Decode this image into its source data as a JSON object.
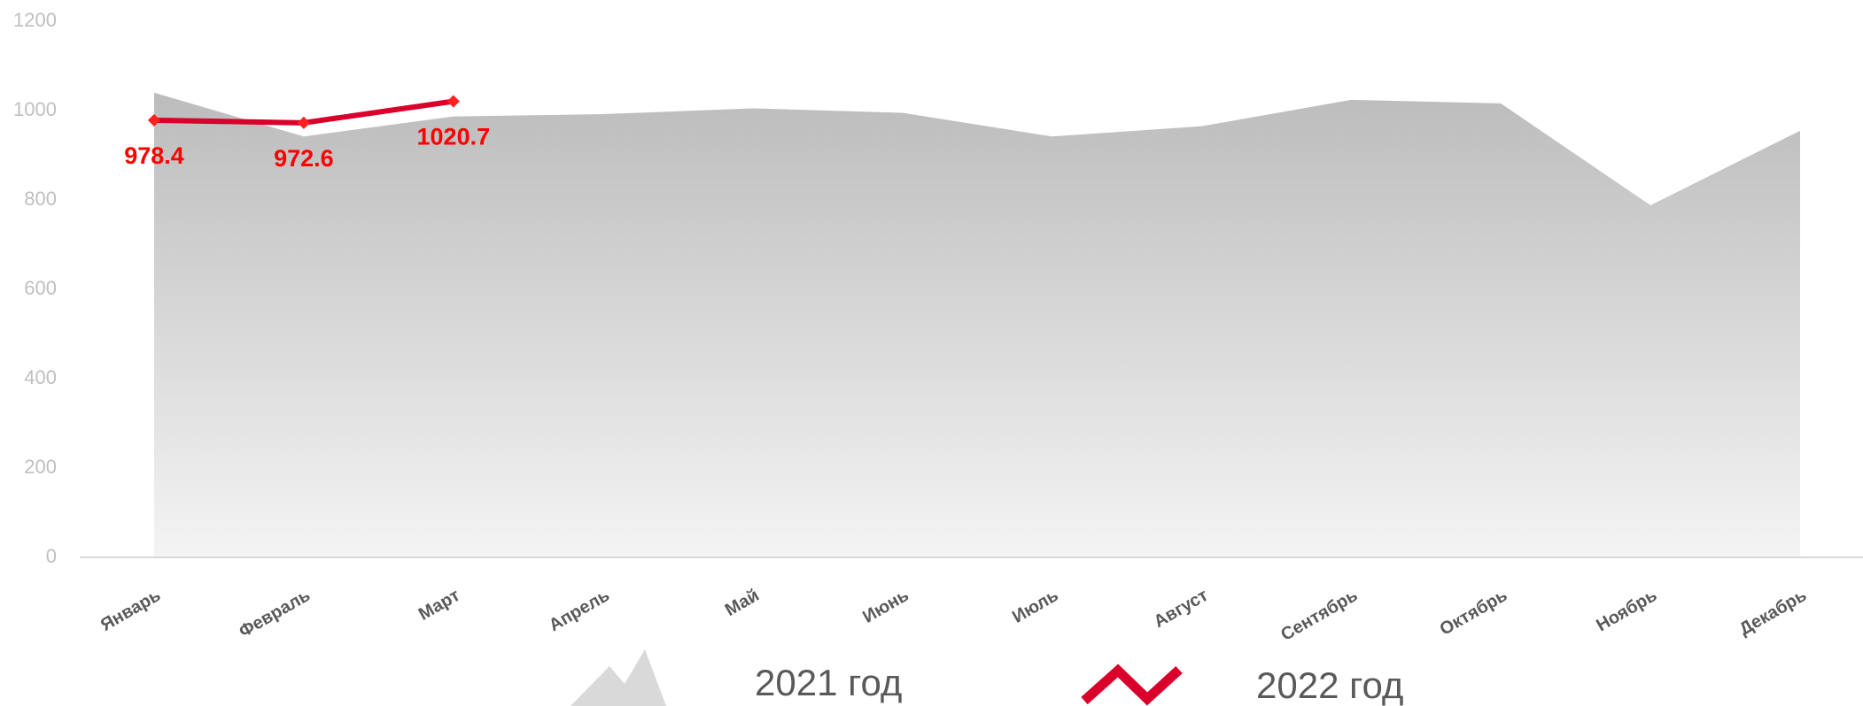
{
  "chart_data": {
    "type": "area-line",
    "categories": [
      "Январь",
      "Февраль",
      "Март",
      "Апрель",
      "Май",
      "Июнь",
      "Июль",
      "Август",
      "Сентябрь",
      "Октябрь",
      "Ноябрь",
      "Декабрь"
    ],
    "series": [
      {
        "name": "2021 год",
        "type": "area",
        "color": "#bfbfbf",
        "values": [
          1040,
          942,
          987,
          992,
          1005,
          995,
          942,
          965,
          1024,
          1016,
          788,
          955
        ]
      },
      {
        "name": "2022 год",
        "type": "line",
        "color": "#d9002b",
        "values": [
          978.4,
          972.6,
          1020.7,
          null,
          null,
          null,
          null,
          null,
          null,
          null,
          null,
          null
        ]
      }
    ],
    "ylim": [
      0,
      1200
    ],
    "yticks": [
      0,
      200,
      400,
      600,
      800,
      1000,
      1200
    ],
    "grid": false,
    "legend": "bottom"
  }
}
